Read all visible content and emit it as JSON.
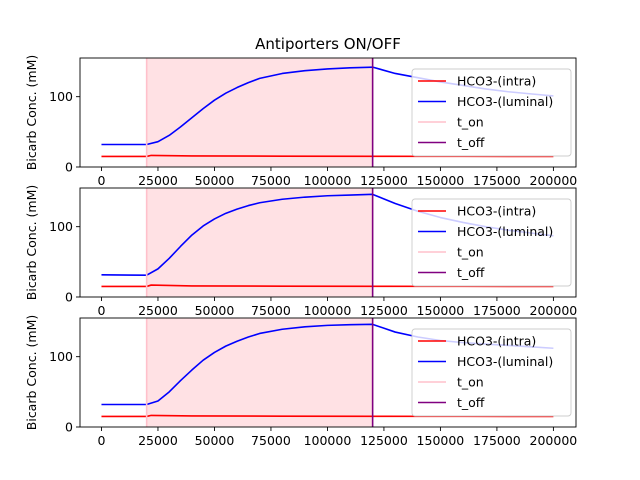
{
  "figure": {
    "title": "Antiporters ON/OFF"
  },
  "colors": {
    "intra": "#ff0000",
    "luminal": "#0000ff",
    "t_on": "#ffc0cb",
    "t_off": "#800080",
    "shade": "#ffe1e4"
  },
  "chart_data": [
    {
      "type": "line",
      "title": "Antiporters ON/OFF",
      "ylabel": "Bicarb Conc. (mM)",
      "xlabel": "",
      "xlim": [
        -9500,
        210000
      ],
      "ylim": [
        0,
        155
      ],
      "xticks": [
        0,
        25000,
        50000,
        75000,
        100000,
        125000,
        150000,
        175000,
        200000
      ],
      "yticks": [
        0,
        100
      ],
      "grid": false,
      "legend_position": "right",
      "shaded_region": [
        20000,
        120000
      ],
      "vlines": [
        {
          "name": "t_on",
          "x": 20000
        },
        {
          "name": "t_off",
          "x": 120000
        }
      ],
      "series": [
        {
          "name": "HCO3-(intra)",
          "x": [
            0,
            20000,
            22000,
            40000,
            80000,
            120000,
            160000,
            200000
          ],
          "y": [
            15,
            15,
            16.5,
            15.8,
            15.4,
            15.2,
            15.1,
            15
          ]
        },
        {
          "name": "HCO3-(luminal)",
          "x": [
            0,
            20000,
            25000,
            30000,
            35000,
            40000,
            45000,
            50000,
            55000,
            60000,
            65000,
            70000,
            80000,
            90000,
            100000,
            110000,
            120000,
            130000,
            140000,
            150000,
            160000,
            170000,
            180000,
            190000,
            200000
          ],
          "y": [
            32,
            32,
            36,
            45,
            57,
            70,
            83,
            95,
            105,
            113,
            120,
            126,
            133,
            137,
            139.5,
            141,
            142,
            133,
            127,
            121,
            116,
            111,
            107,
            104,
            101
          ]
        }
      ]
    },
    {
      "type": "line",
      "title": "",
      "ylabel": "Bicarb Conc. (mM)",
      "xlabel": "",
      "xlim": [
        -9500,
        210000
      ],
      "ylim": [
        0,
        155
      ],
      "xticks": [
        0,
        25000,
        50000,
        75000,
        100000,
        125000,
        150000,
        175000,
        200000
      ],
      "yticks": [
        0,
        100
      ],
      "grid": false,
      "legend_position": "right",
      "shaded_region": [
        20000,
        120000
      ],
      "vlines": [
        {
          "name": "t_on",
          "x": 20000
        },
        {
          "name": "t_off",
          "x": 120000
        }
      ],
      "series": [
        {
          "name": "HCO3-(intra)",
          "x": [
            0,
            20000,
            22000,
            40000,
            80000,
            120000,
            160000,
            200000
          ],
          "y": [
            15,
            15,
            17,
            15.8,
            15.4,
            15.2,
            15.1,
            15
          ]
        },
        {
          "name": "HCO3-(luminal)",
          "x": [
            0,
            20000,
            25000,
            30000,
            35000,
            40000,
            45000,
            50000,
            55000,
            60000,
            65000,
            70000,
            80000,
            90000,
            100000,
            110000,
            120000,
            130000,
            140000,
            150000,
            160000,
            170000,
            180000,
            190000,
            200000
          ],
          "y": [
            31.5,
            31,
            40,
            55,
            72,
            88,
            101,
            111,
            119,
            125,
            130,
            134,
            139,
            142,
            144,
            145,
            146,
            133,
            122,
            113,
            106,
            100,
            95,
            91,
            87
          ]
        }
      ]
    },
    {
      "type": "line",
      "title": "",
      "ylabel": "Bicarb Conc. (mM)",
      "xlabel": "",
      "xlim": [
        -9500,
        210000
      ],
      "ylim": [
        0,
        155
      ],
      "xticks": [
        0,
        25000,
        50000,
        75000,
        100000,
        125000,
        150000,
        175000,
        200000
      ],
      "yticks": [
        0,
        100
      ],
      "grid": false,
      "legend_position": "right",
      "shaded_region": [
        20000,
        120000
      ],
      "vlines": [
        {
          "name": "t_on",
          "x": 20000
        },
        {
          "name": "t_off",
          "x": 120000
        }
      ],
      "series": [
        {
          "name": "HCO3-(intra)",
          "x": [
            0,
            20000,
            22000,
            40000,
            80000,
            120000,
            160000,
            200000
          ],
          "y": [
            15,
            15,
            16.5,
            15.8,
            15.4,
            15.2,
            15.1,
            15
          ]
        },
        {
          "name": "HCO3-(luminal)",
          "x": [
            0,
            20000,
            25000,
            30000,
            35000,
            40000,
            45000,
            50000,
            55000,
            60000,
            65000,
            70000,
            80000,
            90000,
            100000,
            110000,
            120000,
            130000,
            140000,
            150000,
            160000,
            170000,
            180000,
            190000,
            200000
          ],
          "y": [
            32,
            32,
            37,
            50,
            66,
            81,
            95,
            106,
            115,
            122,
            128,
            133,
            139,
            142.5,
            144.5,
            145.5,
            146,
            135,
            128,
            123,
            120,
            118,
            116,
            114,
            112
          ]
        }
      ]
    }
  ]
}
